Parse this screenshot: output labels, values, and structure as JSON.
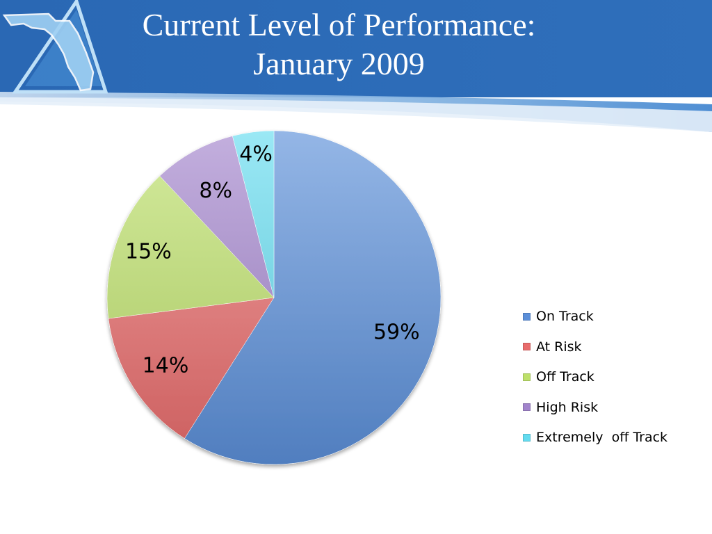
{
  "header": {
    "title_line1": "Current Level of Performance:",
    "title_line2": "January 2009"
  },
  "colors": {
    "header_dark": "#2a68b4",
    "header_light": "#5f9bd8",
    "on_track": "#5b8fd9",
    "at_risk": "#e86b6b",
    "off_track": "#bde06a",
    "high_risk": "#a284cc",
    "extremely_off_track": "#63dbef"
  },
  "logo": {
    "icon": "florida-triangle-logo-icon"
  },
  "chart_data": {
    "type": "pie",
    "title": "",
    "categories": [
      "On Track",
      "At Risk",
      "Off Track",
      "High Risk",
      "Extremely  off Track"
    ],
    "values": [
      59,
      14,
      15,
      8,
      4
    ],
    "labels": [
      "59%",
      "14%",
      "15%",
      "8%",
      "4%"
    ],
    "colors": [
      "#5b8fd9",
      "#e86b6b",
      "#bde06a",
      "#a284cc",
      "#63dbef"
    ],
    "legend_position": "right"
  }
}
